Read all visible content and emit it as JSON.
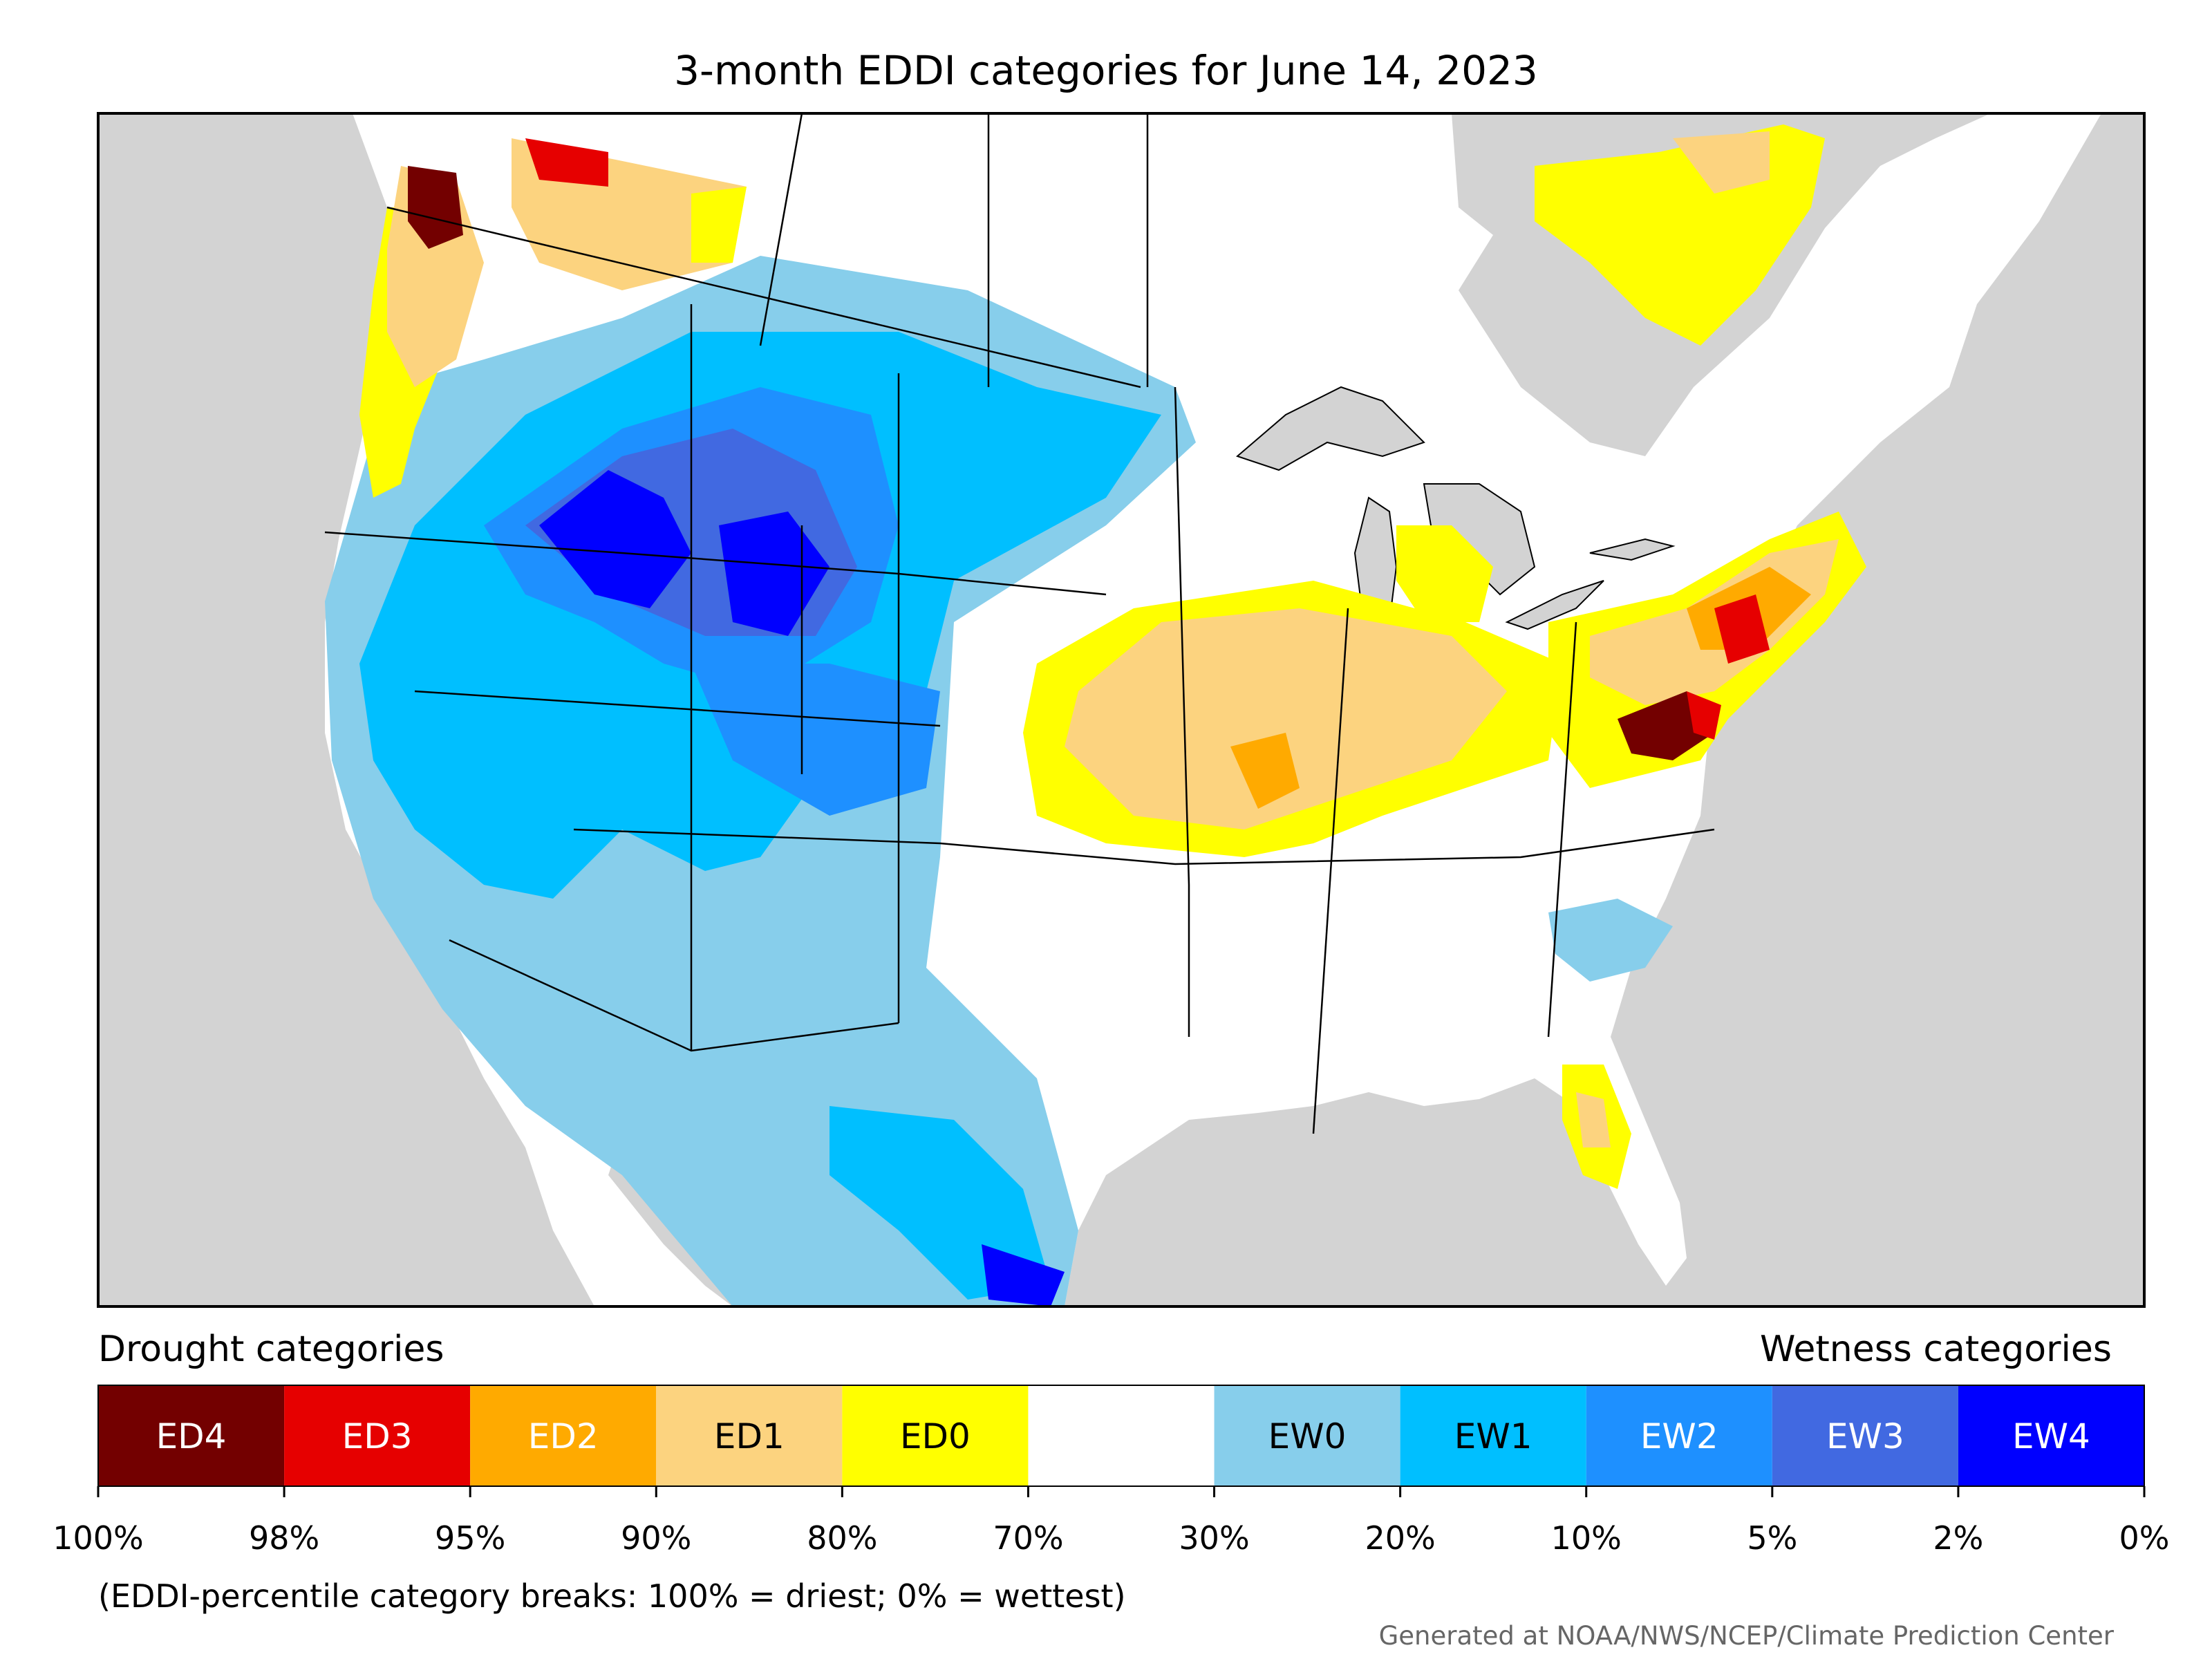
{
  "title": "3-month EDDI categories for June 14, 2023",
  "legend": {
    "drought_label": "Drought categories",
    "wetness_label": "Wetness categories",
    "categories": [
      {
        "name": "ED4",
        "color": "#730000",
        "text_color": "#ffffff"
      },
      {
        "name": "ED3",
        "color": "#e60000",
        "text_color": "#ffffff"
      },
      {
        "name": "ED2",
        "color": "#ffaa00",
        "text_color": "#ffffff"
      },
      {
        "name": "ED1",
        "color": "#fcd37f",
        "text_color": "#000000"
      },
      {
        "name": "ED0",
        "color": "#ffff00",
        "text_color": "#000000"
      },
      {
        "name": "",
        "color": "#ffffff",
        "text_color": "#000000"
      },
      {
        "name": "EW0",
        "color": "#87ceeb",
        "text_color": "#000000"
      },
      {
        "name": "EW1",
        "color": "#00bfff",
        "text_color": "#000000"
      },
      {
        "name": "EW2",
        "color": "#1e90ff",
        "text_color": "#ffffff"
      },
      {
        "name": "EW3",
        "color": "#4169e1",
        "text_color": "#ffffff"
      },
      {
        "name": "EW4",
        "color": "#0000ff",
        "text_color": "#ffffff"
      }
    ],
    "tick_labels": [
      "100%",
      "98%",
      "95%",
      "90%",
      "80%",
      "70%",
      "30%",
      "20%",
      "10%",
      "5%",
      "2%",
      "0%"
    ],
    "note": "(EDDI-percentile category breaks: 100% = driest; 0% = wettest)"
  },
  "credit": "Generated at NOAA/NWS/NCEP/Climate Prediction Center",
  "map": {
    "background_color": "#d3d3d3",
    "land_color": "#ffffff",
    "border_color": "#000000"
  }
}
